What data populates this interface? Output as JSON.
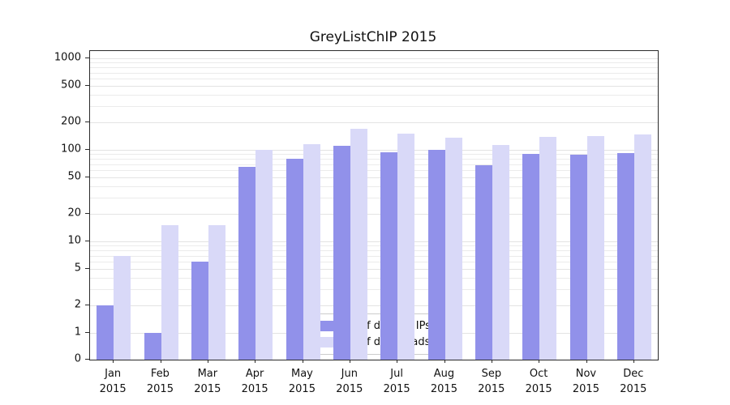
{
  "title": "GreyListChIP 2015",
  "chart_data": {
    "type": "bar",
    "title": "GreyListChIP 2015",
    "categories": [
      "Jan",
      "Feb",
      "Mar",
      "Apr",
      "May",
      "Jun",
      "Jul",
      "Aug",
      "Sep",
      "Oct",
      "Nov",
      "Dec"
    ],
    "category_year": "2015",
    "series": [
      {
        "name": "Nb of distinct IPs",
        "color": "#9191ea",
        "values": [
          2,
          1,
          6,
          65,
          80,
          110,
          95,
          100,
          68,
          90,
          88,
          93
        ]
      },
      {
        "name": "Nb of downloads",
        "color": "#d9d9f8",
        "values": [
          7,
          15,
          15,
          100,
          115,
          170,
          150,
          135,
          112,
          140,
          142,
          148
        ]
      }
    ],
    "yscale": "log",
    "yticks": [
      0,
      1,
      2,
      5,
      10,
      20,
      50,
      100,
      200,
      500,
      1000
    ],
    "ylim": [
      0,
      1000
    ],
    "grid": true,
    "legend_position": "bottom-center"
  }
}
